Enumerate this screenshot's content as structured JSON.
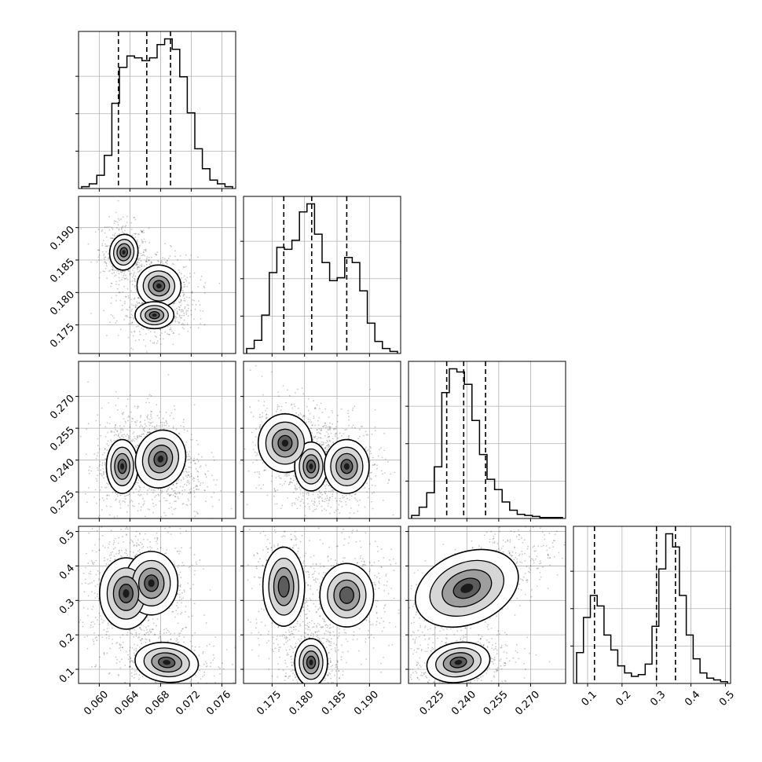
{
  "chart_data": {
    "type": "corner",
    "grid": true,
    "colors": {
      "ink": "#000000",
      "grid": "#b0b0b0",
      "background": "#ffffff"
    },
    "parameters": [
      {
        "index": 0,
        "range": [
          0.0573,
          0.0778
        ],
        "ticks": [
          0.06,
          0.064,
          0.068,
          0.072,
          0.076
        ],
        "tick_labels": [
          "0.060",
          "0.064",
          "0.068",
          "0.072",
          "0.076"
        ],
        "quantiles": [
          0.0625,
          0.0662,
          0.0693
        ]
      },
      {
        "index": 1,
        "range": [
          0.1706,
          0.1948
        ],
        "ticks": [
          0.175,
          0.18,
          0.185,
          0.19
        ],
        "tick_labels": [
          "0.175",
          "0.180",
          "0.185",
          "0.190"
        ],
        "quantiles": [
          0.1768,
          0.1811,
          0.1865
        ]
      },
      {
        "index": 2,
        "range": [
          0.2125,
          0.2865
        ],
        "ticks": [
          0.225,
          0.24,
          0.255,
          0.27
        ],
        "tick_labels": [
          "0.225",
          "0.240",
          "0.255",
          "0.270"
        ],
        "quantiles": [
          0.2305,
          0.2385,
          0.2488
        ]
      },
      {
        "index": 3,
        "range": [
          0.059,
          0.515
        ],
        "ticks": [
          0.1,
          0.2,
          0.3,
          0.4,
          0.5
        ],
        "tick_labels": [
          "0.1",
          "0.2",
          "0.3",
          "0.4",
          "0.5"
        ],
        "quantiles": [
          0.12,
          0.3,
          0.355
        ]
      }
    ],
    "histograms": [
      {
        "param": 0,
        "heights": [
          2,
          5,
          14,
          35,
          90,
          128,
          140,
          138,
          135,
          138,
          152,
          158,
          147,
          118,
          80,
          42,
          21,
          9,
          5,
          2
        ]
      },
      {
        "param": 1,
        "heights": [
          5,
          13,
          38,
          80,
          105,
          103,
          112,
          140,
          148,
          118,
          90,
          72,
          75,
          95,
          90,
          62,
          30,
          12,
          5,
          2
        ]
      },
      {
        "param": 2,
        "heights": [
          3,
          11,
          25,
          50,
          122,
          145,
          142,
          130,
          95,
          62,
          38,
          28,
          16,
          8,
          4,
          3,
          2,
          1,
          1,
          1
        ]
      },
      {
        "param": 3,
        "heights": [
          35,
          75,
          100,
          88,
          55,
          38,
          20,
          12,
          8,
          10,
          22,
          65,
          130,
          170,
          155,
          100,
          55,
          28,
          12,
          6,
          4,
          2
        ]
      }
    ],
    "contour_regions": {
      "0_1": [
        {
          "x": 0.0632,
          "y": 0.1862,
          "sx": 0.0008,
          "sy": 0.0012,
          "rho": -0.1,
          "w": 0.55,
          "n": 4
        },
        {
          "x": 0.0678,
          "y": 0.181,
          "sx": 0.00125,
          "sy": 0.0014,
          "rho": -0.2,
          "w": 0.65,
          "n": 4
        },
        {
          "x": 0.0672,
          "y": 0.1765,
          "sx": 0.0011,
          "sy": 0.0009,
          "rho": 0.0,
          "w": 0.45,
          "n": 4
        }
      ],
      "0_2": [
        {
          "x": 0.063,
          "y": 0.237,
          "sx": 0.0009,
          "sy": 0.0055,
          "rho": 0.0,
          "w": 0.5,
          "n": 4
        },
        {
          "x": 0.068,
          "y": 0.2405,
          "sx": 0.0014,
          "sy": 0.006,
          "rho": -0.3,
          "w": 0.8,
          "n": 4
        }
      ],
      "0_3": [
        {
          "x": 0.0635,
          "y": 0.32,
          "sx": 0.0015,
          "sy": 0.045,
          "rho": 0.0,
          "w": 0.9,
          "n": 4
        },
        {
          "x": 0.0668,
          "y": 0.35,
          "sx": 0.0015,
          "sy": 0.04,
          "rho": 0.0,
          "w": 0.5,
          "n": 4
        },
        {
          "x": 0.0688,
          "y": 0.12,
          "sx": 0.0018,
          "sy": 0.025,
          "rho": -0.2,
          "w": 0.55,
          "n": 4
        }
      ],
      "1_2": [
        {
          "x": 0.177,
          "y": 0.248,
          "sx": 0.0018,
          "sy": 0.006,
          "rho": 0.0,
          "w": 0.45,
          "n": 4
        },
        {
          "x": 0.181,
          "y": 0.237,
          "sx": 0.0011,
          "sy": 0.005,
          "rho": 0.0,
          "w": 0.65,
          "n": 4
        },
        {
          "x": 0.1865,
          "y": 0.237,
          "sx": 0.0015,
          "sy": 0.0055,
          "rho": 0.0,
          "w": 0.55,
          "n": 4
        }
      ],
      "1_3": [
        {
          "x": 0.1768,
          "y": 0.34,
          "sx": 0.0014,
          "sy": 0.05,
          "rho": 0.0,
          "w": 0.55,
          "n": 3
        },
        {
          "x": 0.1865,
          "y": 0.315,
          "sx": 0.0018,
          "sy": 0.04,
          "rho": 0.0,
          "w": 0.7,
          "n": 3
        },
        {
          "x": 0.181,
          "y": 0.12,
          "sx": 0.0011,
          "sy": 0.03,
          "rho": 0.0,
          "w": 0.6,
          "n": 4
        }
      ],
      "2_3": [
        {
          "x": 0.24,
          "y": 0.335,
          "sx": 0.011,
          "sy": 0.045,
          "rho": 0.7,
          "w": 0.95,
          "n": 4
        },
        {
          "x": 0.236,
          "y": 0.12,
          "sx": 0.0065,
          "sy": 0.025,
          "rho": 0.3,
          "w": 0.55,
          "n": 4
        }
      ]
    }
  }
}
